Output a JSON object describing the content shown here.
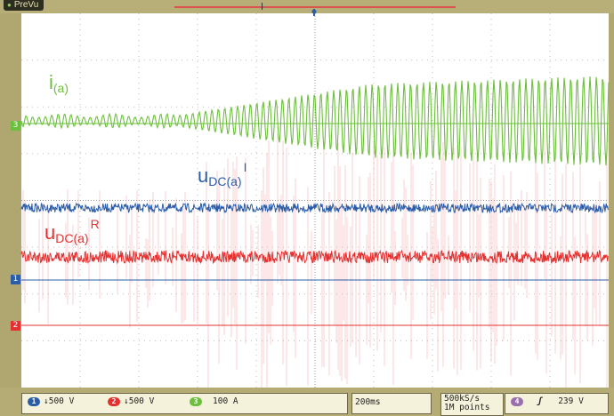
{
  "header": {
    "mode_label": "PreVu",
    "trigger_marker": "T"
  },
  "colors": {
    "ch1": "#2b5ca8",
    "ch2": "#e53030",
    "ch3": "#6cbf3c",
    "ch4": "#9a6fb0",
    "frame": "#b0a670",
    "grid_bg": "#ffffff"
  },
  "traces": {
    "i_a": {
      "base": "i",
      "sub": "(a)"
    },
    "udc_i": {
      "base": "u",
      "sub": "DC(a)",
      "sup": "I"
    },
    "udc_r": {
      "base": "u",
      "sub": "DC(a)",
      "sup": "R"
    }
  },
  "channel_markers": {
    "ch3": "3",
    "ch1": "1",
    "ch2": "2"
  },
  "status": {
    "ch1": {
      "num": "1",
      "scale": "↓500 V"
    },
    "ch2": {
      "num": "2",
      "scale": "↓500 V"
    },
    "ch3": {
      "num": "3",
      "scale": "100 A"
    },
    "timebase": "200ms",
    "sample_rate": "500kS/s",
    "record_length": "1M points",
    "trigger": {
      "num": "4",
      "slope_icon": "rising-edge",
      "slope": "ʃ",
      "level": "239 V"
    }
  }
}
